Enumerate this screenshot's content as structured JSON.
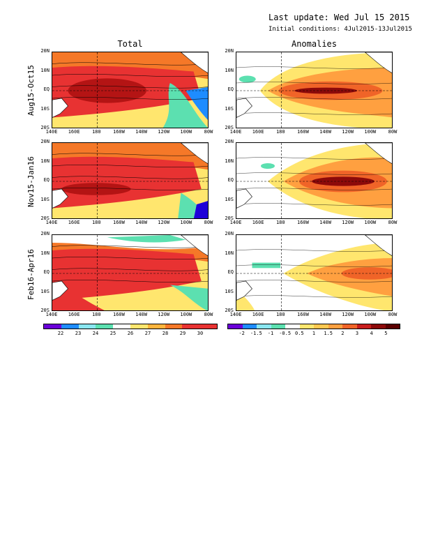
{
  "header": {
    "last_update": "Last update: Wed Jul 15 2015",
    "initial_conditions": "Initial conditions: 4Jul2015-13Jul2015"
  },
  "columns": [
    "Total",
    "Anomalies"
  ],
  "rows": [
    "Aug15-Oct15",
    "Nov15-Jan16",
    "Feb16-Apr16"
  ],
  "axes": {
    "y_ticks": [
      "20N",
      "10N",
      "EQ",
      "10S",
      "20S"
    ],
    "x_ticks": [
      "140E",
      "160E",
      "180",
      "160W",
      "140W",
      "120W",
      "100W",
      "80W"
    ]
  },
  "colorbars": {
    "total": {
      "labels": [
        "22",
        "23",
        "24",
        "25",
        "26",
        "27",
        "28",
        "29",
        "30"
      ],
      "colors": [
        "#6a00d8",
        "#1e8cff",
        "#8ae6f0",
        "#5ce0b0",
        "#ffffff",
        "#ffe66e",
        "#ffb43c",
        "#f57828",
        "#e83232",
        "#e83232"
      ]
    },
    "anomalies": {
      "labels": [
        "-2",
        "-1.5",
        "-1",
        "-0.5",
        "0.5",
        "1",
        "1.5",
        "2",
        "3",
        "4",
        "5"
      ],
      "colors": [
        "#6a00d8",
        "#1e8cff",
        "#8ae6f0",
        "#5ce0b0",
        "#ffffff",
        "#ffe66e",
        "#ffc850",
        "#ffa040",
        "#f06428",
        "#c81e1e",
        "#8c0a0a",
        "#5a0000"
      ]
    }
  }
}
